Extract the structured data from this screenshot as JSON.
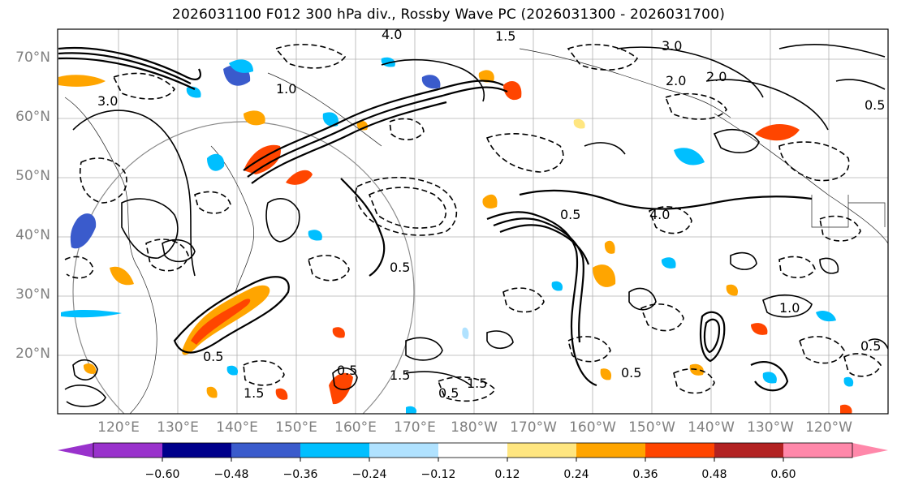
{
  "title": "2026031100 F012 300 hPa div., Rossby Wave PC (2026031300 - 2026031700)",
  "latitude_labels": [
    "70°N",
    "60°N",
    "50°N",
    "40°N",
    "30°N",
    "20°N"
  ],
  "longitude_labels": [
    "120°E",
    "130°E",
    "140°E",
    "150°E",
    "160°E",
    "170°E",
    "180°W",
    "170°W",
    "160°W",
    "150°W",
    "140°W",
    "130°W",
    "120°W"
  ],
  "contour_labels": [
    "4.0",
    "1.5",
    "3.0",
    "2.0",
    "0.5",
    "1.0",
    "0.5",
    "2.0",
    "3.0",
    "0.5",
    "1.5",
    "0.5",
    "4.0",
    "1.5",
    "0.5",
    "1.0",
    "0.5",
    "1.5",
    "0.5",
    "0.5"
  ],
  "colorbar": {
    "ticks": [
      "−0.60",
      "−0.48",
      "−0.36",
      "−0.24",
      "−0.12",
      "0.12",
      "0.24",
      "0.36",
      "0.48",
      "0.60"
    ],
    "colors": [
      "#9932cc",
      "#00008b",
      "#3a5bcc",
      "#00bfff",
      "#b0e2ff",
      "#ffffff",
      "#ffe680",
      "#ffa500",
      "#ff4500",
      "#b22222",
      "#ff88aa"
    ]
  }
}
